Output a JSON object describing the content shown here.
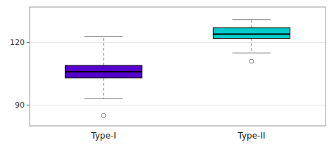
{
  "chart_data": {
    "type": "box",
    "categories": [
      "Type-I",
      "Type-II"
    ],
    "boxes": [
      {
        "q1": 103,
        "q3": 109,
        "median": 106,
        "whisker_low": 93,
        "whisker_high": 123,
        "outliers": [
          85
        ],
        "color": "#5500cc"
      },
      {
        "q1": 122,
        "q3": 127,
        "median": 124,
        "whisker_low": 115,
        "whisker_high": 131,
        "outliers": [
          111
        ],
        "color": "#00cccc"
      }
    ],
    "ylim": [
      80,
      137
    ],
    "yticks": [
      90,
      120
    ]
  }
}
